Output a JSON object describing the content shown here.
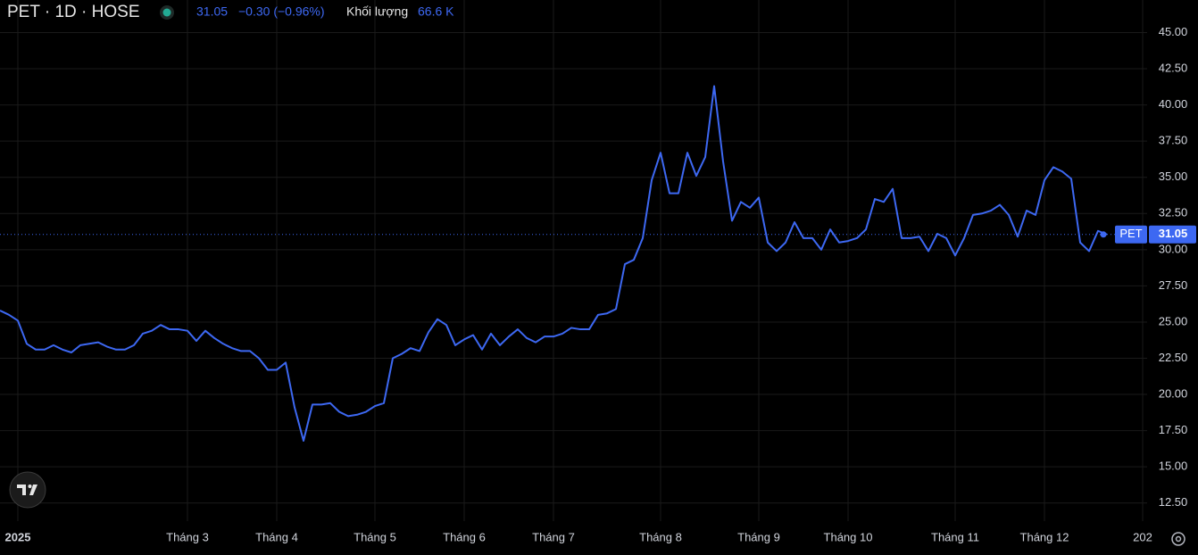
{
  "header": {
    "symbol": "PET · 1D · HOSE",
    "change": "−0.30 (−0.96%)",
    "volume_label": "Khối lượng",
    "volume": "66.6 K"
  },
  "chart_data": {
    "type": "line",
    "categories": [
      null,
      null,
      "2025",
      null,
      null,
      null,
      null,
      null,
      null,
      null,
      null,
      null,
      null,
      null,
      null,
      null,
      null,
      null,
      null,
      null,
      null,
      "Tháng 3",
      null,
      null,
      null,
      null,
      null,
      null,
      null,
      null,
      null,
      "Tháng 4",
      null,
      null,
      null,
      null,
      null,
      null,
      null,
      null,
      null,
      null,
      "Tháng 5",
      null,
      null,
      null,
      null,
      null,
      null,
      null,
      null,
      null,
      "Tháng 6",
      null,
      null,
      null,
      null,
      null,
      null,
      null,
      null,
      null,
      "Tháng 7",
      null,
      null,
      null,
      null,
      null,
      null,
      null,
      null,
      null,
      null,
      null,
      "Tháng 8",
      null,
      null,
      null,
      null,
      null,
      null,
      null,
      null,
      null,
      null,
      "Tháng 9",
      null,
      null,
      null,
      null,
      null,
      null,
      null,
      null,
      null,
      "Tháng 10",
      null,
      null,
      null,
      null,
      null,
      null,
      null,
      null,
      null,
      null,
      null,
      "Tháng 11",
      null,
      null,
      null,
      null,
      null,
      null,
      null,
      null,
      null,
      "Tháng 12",
      null,
      null,
      null,
      null,
      null,
      null,
      null,
      null,
      null,
      null,
      "202"
    ],
    "series": [
      {
        "name": "PET",
        "color": "#3d68f2",
        "values": [
          25.8,
          25.5,
          25.1,
          23.5,
          23.1,
          23.1,
          23.4,
          23.1,
          22.9,
          23.4,
          23.5,
          23.6,
          23.3,
          23.1,
          23.1,
          23.4,
          24.2,
          24.4,
          24.8,
          24.5,
          24.5,
          24.4,
          23.7,
          24.4,
          23.9,
          23.5,
          23.2,
          23.0,
          23.0,
          22.5,
          21.7,
          21.7,
          22.2,
          19.1,
          16.8,
          19.3,
          19.3,
          19.4,
          18.8,
          18.5,
          18.6,
          18.8,
          19.2,
          19.4,
          22.5,
          22.8,
          23.2,
          23.0,
          24.3,
          25.2,
          24.8,
          23.4,
          23.8,
          24.1,
          23.1,
          24.2,
          23.4,
          24.0,
          24.5,
          23.9,
          23.6,
          24.0,
          24.0,
          24.2,
          24.6,
          24.5,
          24.5,
          25.5,
          25.6,
          25.9,
          29.0,
          29.3,
          30.8,
          34.8,
          36.7,
          33.9,
          33.9,
          36.7,
          35.1,
          36.4,
          41.3,
          36.1,
          32.0,
          33.3,
          32.9,
          33.6,
          30.5,
          29.9,
          30.5,
          31.9,
          30.8,
          30.8,
          30.0,
          31.4,
          30.5,
          30.6,
          30.8,
          31.4,
          33.5,
          33.3,
          34.2,
          30.8,
          30.8,
          30.9,
          29.9,
          31.1,
          30.8,
          29.6,
          30.8,
          32.4,
          32.5,
          32.7,
          33.1,
          32.4,
          30.9,
          32.7,
          32.4,
          34.8,
          35.7,
          35.4,
          34.9,
          30.5,
          29.9,
          31.3,
          31.05,
          null,
          null,
          null,
          null
        ]
      }
    ],
    "ylim": [
      11.25,
      47.25
    ],
    "yticks": [
      {
        "value": 12.5,
        "label": "12.50"
      },
      {
        "value": 15,
        "label": "15.00"
      },
      {
        "value": 17.5,
        "label": "17.50"
      },
      {
        "value": 20,
        "label": "20.00"
      },
      {
        "value": 22.5,
        "label": "22.50"
      },
      {
        "value": 25,
        "label": "25.00"
      },
      {
        "value": 27.5,
        "label": "27.50"
      },
      {
        "value": 30,
        "label": "30.00"
      },
      {
        "value": 32.5,
        "label": "32.50"
      },
      {
        "value": 35,
        "label": "35.00"
      },
      {
        "value": 37.5,
        "label": "37.50"
      },
      {
        "value": 40,
        "label": "40.00"
      },
      {
        "value": 42.5,
        "label": "42.50"
      },
      {
        "value": 45,
        "label": "45.00"
      }
    ],
    "grid": true
  }
}
